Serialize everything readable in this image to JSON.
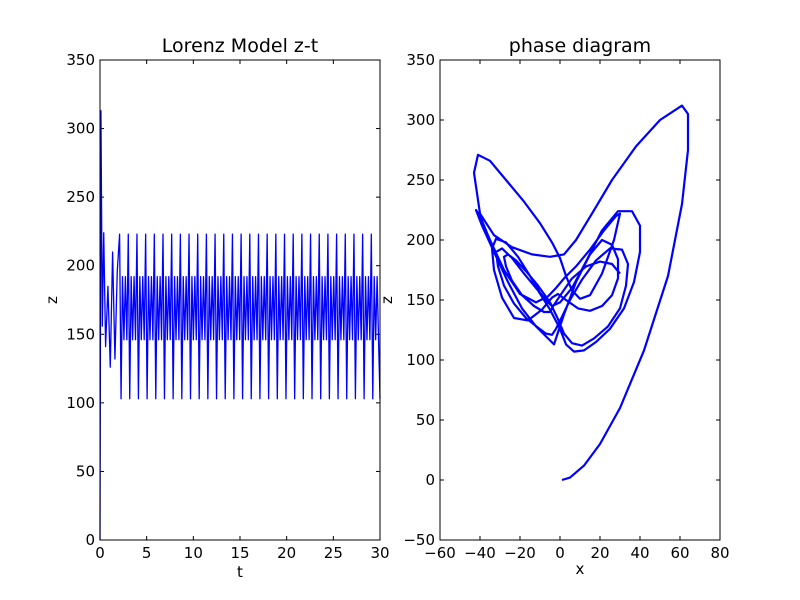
{
  "colors": {
    "line": "#0000ff",
    "axes": "#000000",
    "background": "#ffffff"
  },
  "chart_data": [
    {
      "type": "line",
      "title": "Lorenz Model z-t",
      "xlabel": "t",
      "ylabel": "z",
      "xlim": [
        0,
        30
      ],
      "ylim": [
        0,
        350
      ],
      "grid": false,
      "legend": "none",
      "xticks": [
        "0",
        "5",
        "10",
        "15",
        "20",
        "25",
        "30"
      ],
      "yticks": [
        "0",
        "50",
        "100",
        "150",
        "200",
        "250",
        "300",
        "350"
      ],
      "series": [
        {
          "t": [
            0,
            0.1,
            0.25,
            0.4,
            0.6,
            0.85,
            1.1,
            1.35,
            1.6,
            1.85,
            2.1,
            2.4,
            30
          ],
          "z": [
            0,
            313,
            156,
            224,
            141,
            185,
            126,
            210,
            132,
            196,
            103,
            223,
            103
          ],
          "steady_oscillation": {
            "start_t": 2.1,
            "end_t": 30,
            "levels": [
              223,
              192,
              146,
              103
            ],
            "pattern": [
              0,
              3,
              1,
              2,
              1,
              2
            ],
            "half_period": 0.155
          }
        }
      ]
    },
    {
      "type": "line",
      "title": "phase diagram",
      "xlabel": "x",
      "ylabel": "z",
      "xlim": [
        -60,
        80
      ],
      "ylim": [
        -50,
        350
      ],
      "grid": false,
      "legend": "none",
      "xticks": [
        "−60",
        "−40",
        "−20",
        "0",
        "20",
        "40",
        "60",
        "80"
      ],
      "yticks": [
        "−50",
        "0",
        "50",
        "100",
        "150",
        "200",
        "250",
        "300",
        "350"
      ],
      "series": [
        {
          "x": [
            1,
            5,
            12,
            20,
            30,
            42,
            54,
            61,
            64,
            64,
            61,
            50,
            38,
            26,
            16,
            8,
            2,
            -5,
            -14,
            -24,
            -33,
            -40,
            -43,
            -41,
            -35,
            -27,
            -18,
            -10,
            -4,
            0,
            3,
            6,
            10,
            15,
            21,
            27,
            30,
            28,
            22,
            15,
            8,
            2,
            -2,
            -6,
            -12,
            -20,
            -28,
            -35,
            -40,
            -42,
            -39,
            -33,
            -26,
            -19,
            -12,
            -6,
            -3,
            -2,
            2,
            8,
            15,
            21,
            26,
            29,
            29,
            26,
            21,
            15,
            9,
            3,
            -1,
            -4,
            -9,
            -16,
            -23,
            -29,
            -33,
            -34,
            -32,
            -27,
            -21,
            -15,
            -10,
            -6,
            -4,
            0,
            6,
            13,
            21,
            29,
            36,
            40,
            40,
            37,
            32,
            25,
            18,
            12,
            7,
            3,
            0,
            -5,
            -11,
            -18,
            -24,
            -29,
            -32,
            -31,
            -28,
            -23,
            -17,
            -11,
            -7,
            -4,
            -2,
            1,
            5,
            11,
            18,
            25,
            31,
            34,
            33,
            30,
            24,
            17,
            11,
            6,
            2,
            -1,
            -5,
            -11,
            -17,
            -22,
            -26,
            -28,
            -27,
            -24,
            -19,
            -13,
            -8,
            -5,
            -3,
            1,
            6,
            13,
            20,
            26,
            30
          ],
          "z": [
            0,
            2,
            12,
            30,
            60,
            108,
            170,
            230,
            275,
            305,
            312,
            300,
            278,
            250,
            222,
            200,
            188,
            186,
            188,
            194,
            204,
            222,
            256,
            271,
            266,
            250,
            232,
            214,
            198,
            185,
            170,
            158,
            151,
            154,
            172,
            200,
            222,
            220,
            208,
            192,
            178,
            168,
            160,
            153,
            148,
            155,
            175,
            200,
            220,
            225,
            212,
            190,
            165,
            143,
            128,
            118,
            113,
            118,
            138,
            165,
            188,
            200,
            196,
            184,
            168,
            154,
            145,
            141,
            143,
            150,
            155,
            152,
            142,
            133,
            135,
            152,
            175,
            193,
            201,
            198,
            186,
            170,
            156,
            148,
            145,
            148,
            160,
            182,
            208,
            224,
            224,
            212,
            190,
            165,
            143,
            126,
            115,
            108,
            107,
            113,
            126,
            142,
            158,
            172,
            185,
            193,
            190,
            178,
            162,
            147,
            135,
            127,
            122,
            121,
            126,
            136,
            150,
            167,
            183,
            193,
            192,
            180,
            162,
            143,
            128,
            118,
            112,
            114,
            122,
            134,
            148,
            162,
            174,
            183,
            188,
            186,
            178,
            166,
            154,
            145,
            140,
            140,
            146,
            156,
            168,
            178,
            182,
            180,
            172
          ]
        }
      ]
    }
  ]
}
